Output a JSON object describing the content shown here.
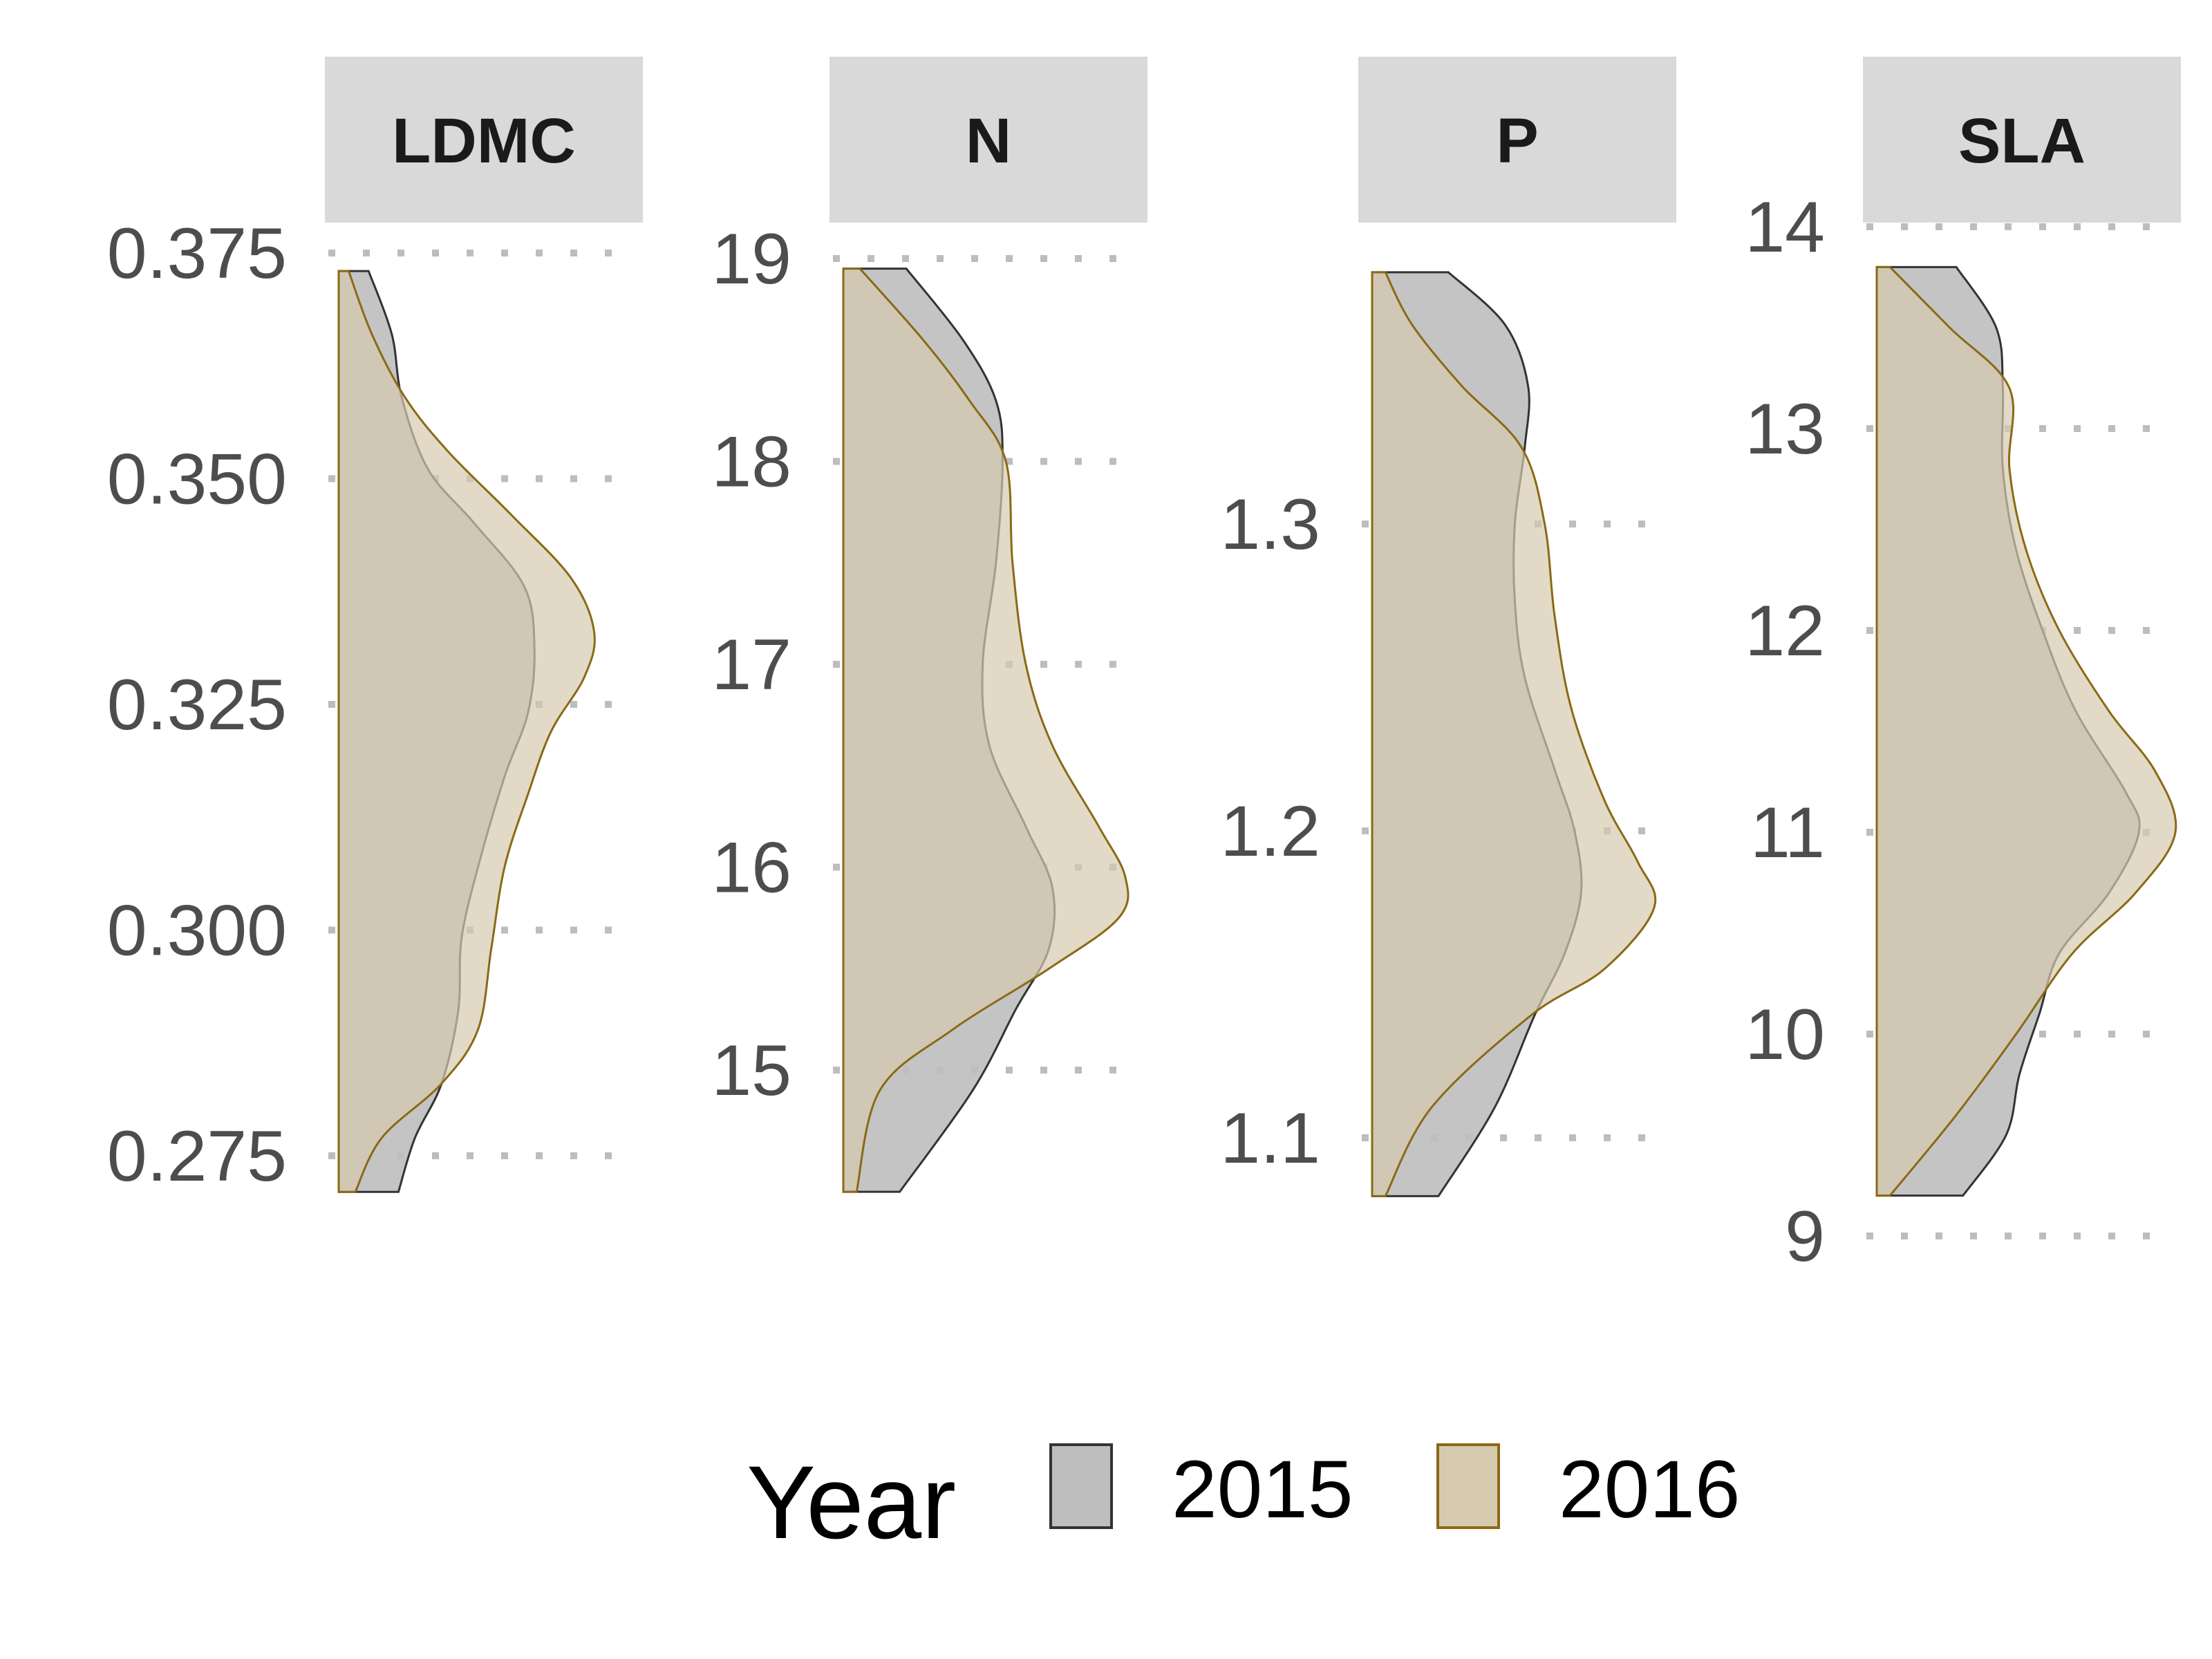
{
  "chart_data": {
    "type": "area",
    "colors": {
      "strip_bg": "#d9d9d9",
      "grid": "#bdbdbd",
      "y2015_fill": "#bebebe",
      "y2015_stroke": "#333333",
      "y2016_fill": "#d6cbaf",
      "y2016_stroke": "#8b6914"
    },
    "legend": {
      "title": "Year",
      "position": "bottom",
      "entries": [
        {
          "key": "2015",
          "label": "2015"
        },
        {
          "key": "2016",
          "label": "2016"
        }
      ]
    },
    "panels": [
      {
        "title": "LDMC",
        "yticks": [
          0.275,
          0.3,
          0.325,
          0.35,
          0.375
        ],
        "tick_labels": [
          "0.275",
          "0.300",
          "0.325",
          "0.350",
          "0.375"
        ],
        "ylim": [
          0.271,
          0.375
        ],
        "density_max": 1,
        "series": {
          "2015": [
            {
              "y": 0.373,
              "d": 0.09
            },
            {
              "y": 0.366,
              "d": 0.16
            },
            {
              "y": 0.359,
              "d": 0.19
            },
            {
              "y": 0.351,
              "d": 0.27
            },
            {
              "y": 0.345,
              "d": 0.41
            },
            {
              "y": 0.338,
              "d": 0.56
            },
            {
              "y": 0.331,
              "d": 0.59
            },
            {
              "y": 0.324,
              "d": 0.57
            },
            {
              "y": 0.317,
              "d": 0.5
            },
            {
              "y": 0.307,
              "d": 0.42
            },
            {
              "y": 0.299,
              "d": 0.37
            },
            {
              "y": 0.291,
              "d": 0.36
            },
            {
              "y": 0.283,
              "d": 0.31
            },
            {
              "y": 0.277,
              "d": 0.23
            },
            {
              "y": 0.271,
              "d": 0.18
            }
          ],
          "2016": [
            {
              "y": 0.373,
              "d": 0.03
            },
            {
              "y": 0.366,
              "d": 0.1
            },
            {
              "y": 0.359,
              "d": 0.2
            },
            {
              "y": 0.353,
              "d": 0.33
            },
            {
              "y": 0.346,
              "d": 0.52
            },
            {
              "y": 0.339,
              "d": 0.7
            },
            {
              "y": 0.333,
              "d": 0.77
            },
            {
              "y": 0.328,
              "d": 0.74
            },
            {
              "y": 0.322,
              "d": 0.64
            },
            {
              "y": 0.315,
              "d": 0.57
            },
            {
              "y": 0.307,
              "d": 0.5
            },
            {
              "y": 0.298,
              "d": 0.46
            },
            {
              "y": 0.289,
              "d": 0.42
            },
            {
              "y": 0.283,
              "d": 0.31
            },
            {
              "y": 0.277,
              "d": 0.13
            },
            {
              "y": 0.271,
              "d": 0.05
            }
          ]
        }
      },
      {
        "title": "N",
        "yticks": [
          15,
          16,
          17,
          18,
          19
        ],
        "tick_labels": [
          "15",
          "16",
          "17",
          "18",
          "19"
        ],
        "ylim": [
          14.4,
          19.0
        ],
        "density_max": 1,
        "series": {
          "2015": [
            {
              "y": 18.95,
              "d": 0.19
            },
            {
              "y": 18.6,
              "d": 0.36
            },
            {
              "y": 18.3,
              "d": 0.46
            },
            {
              "y": 18.0,
              "d": 0.48
            },
            {
              "y": 17.5,
              "d": 0.46
            },
            {
              "y": 17.0,
              "d": 0.42
            },
            {
              "y": 16.6,
              "d": 0.44
            },
            {
              "y": 16.2,
              "d": 0.55
            },
            {
              "y": 15.9,
              "d": 0.63
            },
            {
              "y": 15.6,
              "d": 0.62
            },
            {
              "y": 15.3,
              "d": 0.52
            },
            {
              "y": 14.9,
              "d": 0.39
            },
            {
              "y": 14.4,
              "d": 0.17
            }
          ],
          "2016": [
            {
              "y": 18.95,
              "d": 0.05
            },
            {
              "y": 18.6,
              "d": 0.24
            },
            {
              "y": 18.3,
              "d": 0.38
            },
            {
              "y": 18.0,
              "d": 0.49
            },
            {
              "y": 17.5,
              "d": 0.51
            },
            {
              "y": 17.0,
              "d": 0.55
            },
            {
              "y": 16.6,
              "d": 0.63
            },
            {
              "y": 16.2,
              "d": 0.77
            },
            {
              "y": 15.95,
              "d": 0.85
            },
            {
              "y": 15.75,
              "d": 0.83
            },
            {
              "y": 15.5,
              "d": 0.62
            },
            {
              "y": 15.2,
              "d": 0.33
            },
            {
              "y": 14.9,
              "d": 0.11
            },
            {
              "y": 14.4,
              "d": 0.04
            }
          ]
        }
      },
      {
        "title": "P",
        "yticks": [
          1.1,
          1.2,
          1.3
        ],
        "tick_labels": [
          "1.1",
          "1.2",
          "1.3"
        ],
        "ylim": [
          1.081,
          1.384
        ],
        "density_max": 1,
        "series": {
          "2015": [
            {
              "y": 1.382,
              "d": 0.23
            },
            {
              "y": 1.365,
              "d": 0.4
            },
            {
              "y": 1.345,
              "d": 0.47
            },
            {
              "y": 1.325,
              "d": 0.46
            },
            {
              "y": 1.3,
              "d": 0.43
            },
            {
              "y": 1.275,
              "d": 0.43
            },
            {
              "y": 1.25,
              "d": 0.46
            },
            {
              "y": 1.22,
              "d": 0.55
            },
            {
              "y": 1.2,
              "d": 0.61
            },
            {
              "y": 1.18,
              "d": 0.63
            },
            {
              "y": 1.16,
              "d": 0.58
            },
            {
              "y": 1.14,
              "d": 0.49
            },
            {
              "y": 1.11,
              "d": 0.37
            },
            {
              "y": 1.081,
              "d": 0.2
            }
          ],
          "2016": [
            {
              "y": 1.382,
              "d": 0.04
            },
            {
              "y": 1.365,
              "d": 0.12
            },
            {
              "y": 1.345,
              "d": 0.27
            },
            {
              "y": 1.325,
              "d": 0.45
            },
            {
              "y": 1.3,
              "d": 0.52
            },
            {
              "y": 1.27,
              "d": 0.55
            },
            {
              "y": 1.24,
              "d": 0.6
            },
            {
              "y": 1.21,
              "d": 0.7
            },
            {
              "y": 1.19,
              "d": 0.8
            },
            {
              "y": 1.175,
              "d": 0.85
            },
            {
              "y": 1.155,
              "d": 0.7
            },
            {
              "y": 1.14,
              "d": 0.48
            },
            {
              "y": 1.11,
              "d": 0.18
            },
            {
              "y": 1.081,
              "d": 0.04
            }
          ]
        }
      },
      {
        "title": "SLA",
        "yticks": [
          9,
          10,
          11,
          12,
          13,
          14
        ],
        "tick_labels": [
          "9",
          "10",
          "11",
          "12",
          "13",
          "14"
        ],
        "ylim": [
          9.2,
          13.8
        ],
        "density_max": 1,
        "series": {
          "2015": [
            {
              "y": 13.8,
              "d": 0.24
            },
            {
              "y": 13.5,
              "d": 0.36
            },
            {
              "y": 13.2,
              "d": 0.38
            },
            {
              "y": 12.8,
              "d": 0.38
            },
            {
              "y": 12.4,
              "d": 0.42
            },
            {
              "y": 12.0,
              "d": 0.5
            },
            {
              "y": 11.6,
              "d": 0.6
            },
            {
              "y": 11.2,
              "d": 0.75
            },
            {
              "y": 11.0,
              "d": 0.79
            },
            {
              "y": 10.7,
              "d": 0.7
            },
            {
              "y": 10.4,
              "d": 0.55
            },
            {
              "y": 10.1,
              "d": 0.49
            },
            {
              "y": 9.8,
              "d": 0.43
            },
            {
              "y": 9.5,
              "d": 0.39
            },
            {
              "y": 9.2,
              "d": 0.26
            }
          ],
          "2016": [
            {
              "y": 13.8,
              "d": 0.04
            },
            {
              "y": 13.5,
              "d": 0.22
            },
            {
              "y": 13.2,
              "d": 0.4
            },
            {
              "y": 12.8,
              "d": 0.4
            },
            {
              "y": 12.4,
              "d": 0.45
            },
            {
              "y": 12.0,
              "d": 0.55
            },
            {
              "y": 11.6,
              "d": 0.7
            },
            {
              "y": 11.3,
              "d": 0.84
            },
            {
              "y": 11.0,
              "d": 0.9
            },
            {
              "y": 10.7,
              "d": 0.78
            },
            {
              "y": 10.4,
              "d": 0.59
            },
            {
              "y": 10.0,
              "d": 0.42
            },
            {
              "y": 9.6,
              "d": 0.24
            },
            {
              "y": 9.2,
              "d": 0.04
            }
          ]
        }
      }
    ]
  }
}
